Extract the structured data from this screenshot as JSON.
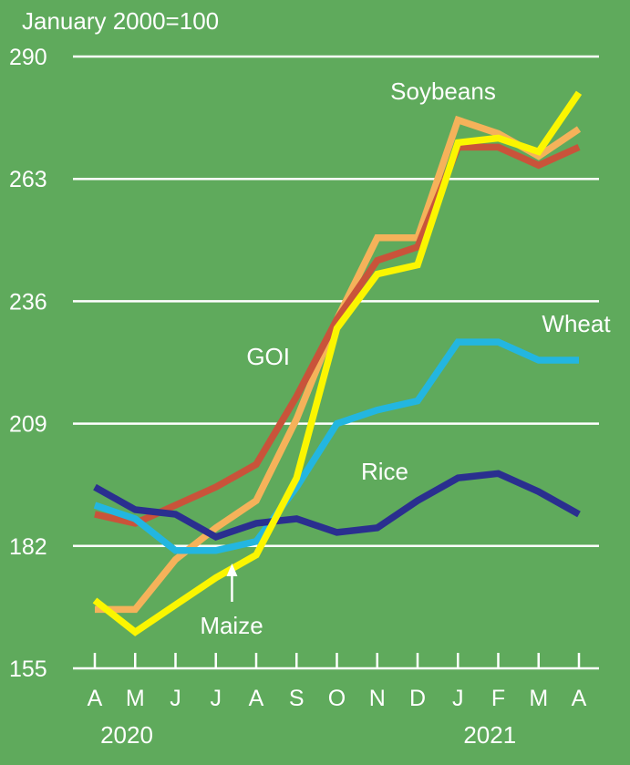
{
  "chart_data": {
    "type": "line",
    "ylabel": "January 2000=100",
    "ylim": [
      155,
      290
    ],
    "yticks": [
      290,
      263,
      236,
      209,
      182,
      155
    ],
    "grid": true,
    "categories": [
      "A",
      "M",
      "J",
      "J",
      "A",
      "S",
      "O",
      "N",
      "D",
      "J",
      "F",
      "M",
      "A"
    ],
    "year_labels": [
      {
        "text": "2020",
        "index": 0
      },
      {
        "text": "2021",
        "index": 9
      }
    ],
    "series": [
      {
        "name": "Soybeans",
        "color": "#f5b25a",
        "values": [
          168,
          168,
          179,
          186,
          192,
          210,
          232,
          250,
          250,
          276,
          273,
          268,
          274
        ]
      },
      {
        "name": "GOI",
        "color": "#c9533a",
        "values": [
          189,
          187,
          191,
          195,
          200,
          215,
          232,
          245,
          248,
          270,
          270,
          266,
          270
        ]
      },
      {
        "name": "Wheat",
        "color": "#23b6e0",
        "values": [
          191,
          188,
          181,
          181,
          183,
          195,
          209,
          212,
          214,
          227,
          227,
          223,
          223
        ]
      },
      {
        "name": "Rice",
        "color": "#2a2f8f",
        "values": [
          195,
          190,
          189,
          184,
          187,
          188,
          185,
          186,
          192,
          197,
          198,
          194,
          189
        ]
      },
      {
        "name": "Maize",
        "color": "#fbf600",
        "values": [
          170,
          163,
          169,
          175,
          180,
          197,
          230,
          242,
          244,
          271,
          272,
          269,
          282
        ]
      }
    ],
    "annotations": {
      "maize_arrow_index": 3.4
    }
  }
}
